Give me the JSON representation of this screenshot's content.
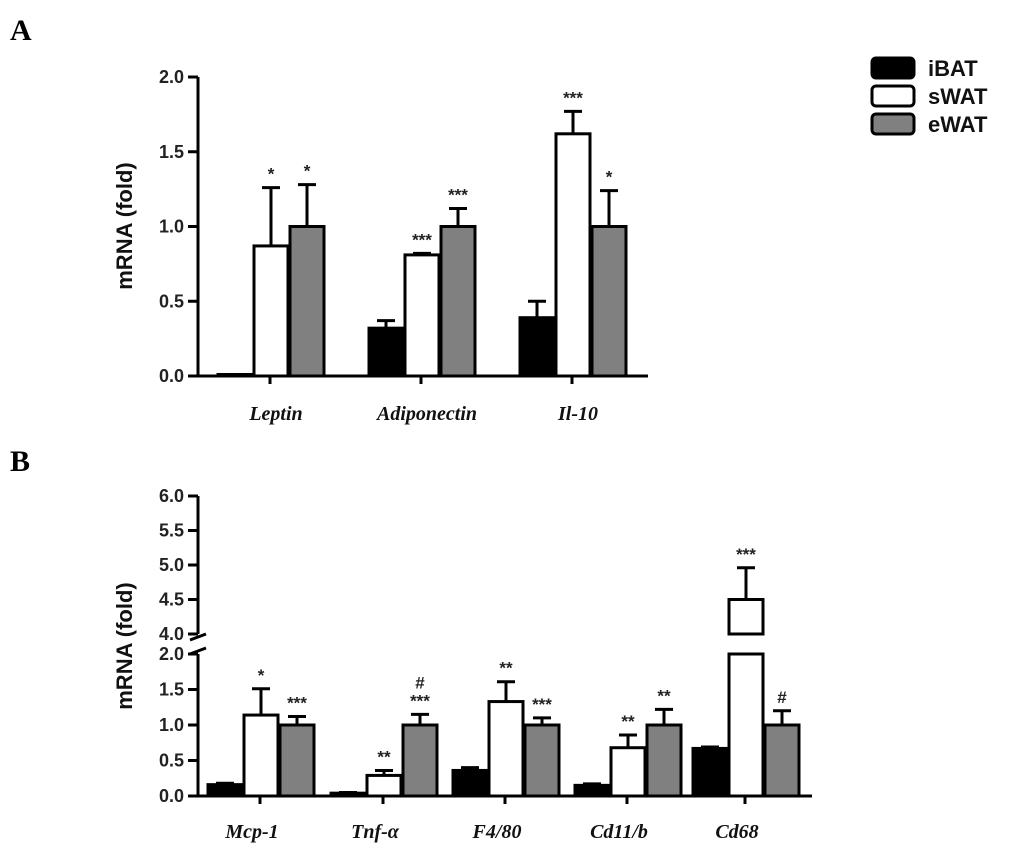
{
  "legend": [
    {
      "name": "iBAT",
      "color": "#000000"
    },
    {
      "name": "sWAT",
      "color": "#ffffff"
    },
    {
      "name": "eWAT",
      "color": "#808080"
    }
  ],
  "chart_data": [
    {
      "panel": "A",
      "type": "bar",
      "ylabel": "mRNA (fold)",
      "ylim": [
        0,
        2.0
      ],
      "yticks": [
        "0.0",
        "0.5",
        "1.0",
        "1.5",
        "2.0"
      ],
      "categories": [
        "Leptin",
        "Adiponectin",
        "Il-10"
      ],
      "series": [
        {
          "name": "iBAT",
          "values": [
            0.01,
            0.32,
            0.39
          ],
          "errors": [
            0.0,
            0.05,
            0.11
          ],
          "sig": [
            "",
            "",
            ""
          ]
        },
        {
          "name": "sWAT",
          "values": [
            0.87,
            0.81,
            1.62
          ],
          "errors": [
            0.39,
            0.01,
            0.15
          ],
          "sig": [
            "*",
            "***",
            "***"
          ]
        },
        {
          "name": "eWAT",
          "values": [
            1.0,
            1.0,
            1.0
          ],
          "errors": [
            0.28,
            0.12,
            0.24
          ],
          "sig": [
            "*",
            "***",
            "*"
          ]
        }
      ]
    },
    {
      "panel": "B",
      "type": "bar",
      "ylabel": "mRNA (fold)",
      "ylim": [
        0,
        6.0
      ],
      "axis_break": [
        2.0,
        4.0
      ],
      "yticks_lower": [
        "0.0",
        "0.5",
        "1.0",
        "1.5",
        "2.0"
      ],
      "yticks_upper": [
        "4.0",
        "4.5",
        "5.0",
        "5.5",
        "6.0"
      ],
      "categories": [
        "Mcp-1",
        "Tnf-α",
        "F4/80",
        "Cd11/b",
        "Cd68"
      ],
      "series": [
        {
          "name": "iBAT",
          "values": [
            0.16,
            0.04,
            0.36,
            0.15,
            0.67
          ],
          "errors": [
            0.02,
            0.01,
            0.04,
            0.02,
            0.02
          ],
          "sig": [
            "",
            "",
            "",
            "",
            ""
          ]
        },
        {
          "name": "sWAT",
          "values": [
            1.14,
            0.29,
            1.33,
            0.68,
            4.5
          ],
          "errors": [
            0.37,
            0.07,
            0.28,
            0.18,
            0.46
          ],
          "sig": [
            "*",
            "**",
            "**",
            "**",
            "***"
          ]
        },
        {
          "name": "eWAT",
          "values": [
            1.0,
            1.0,
            1.0,
            1.0,
            1.0
          ],
          "errors": [
            0.12,
            0.15,
            0.1,
            0.22,
            0.2
          ],
          "sig": [
            "***",
            "#\n***",
            "***",
            "**",
            "#"
          ]
        }
      ]
    }
  ]
}
